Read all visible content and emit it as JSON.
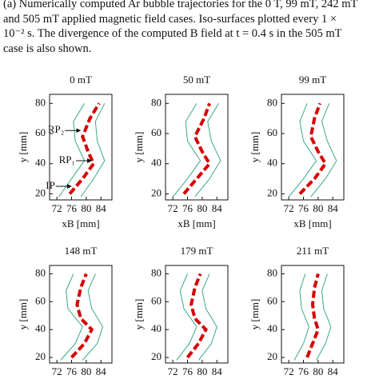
{
  "caption": [
    "(a) Numerically computed Ar bubble trajectories for the 0 T, 99 mT, 242 mT",
    "and 505 mT applied magnetic field cases.  Iso-surfaces plotted every 1 ×",
    "10⁻² s. The divergence of the computed B field at t = 0.4 s in the 505 mT",
    "case is also shown."
  ],
  "chart_data": [
    {
      "type": "line",
      "title": "0 mT",
      "xlabel": "xB [mm]",
      "ylabel": "y [mm]",
      "xlim": [
        70,
        87
      ],
      "ylim": [
        16,
        86
      ],
      "xticks": [
        72,
        76,
        80,
        84
      ],
      "yticks": [
        20,
        40,
        60,
        80
      ],
      "series": [
        {
          "color": "#3aa88a",
          "x": [
            72.5,
            76,
            79.5,
            77,
            76.5,
            79.5
          ],
          "values": [
            18,
            30,
            42,
            55,
            68,
            80
          ]
        },
        {
          "color": "#3aa88a",
          "x": [
            78.5,
            82,
            85,
            83,
            82.5,
            85
          ],
          "values": [
            18,
            30,
            42,
            55,
            68,
            80
          ]
        },
        {
          "color": "#d40000",
          "x": [
            75.5,
            79,
            82,
            80.5,
            79,
            81,
            83.5
          ],
          "values": [
            20,
            30,
            40,
            48,
            58,
            70,
            80
          ]
        }
      ],
      "annotations": [
        {
          "text": "RP₂",
          "x": 79,
          "y": 62
        },
        {
          "text": "RP₁",
          "x": 82,
          "y": 42
        },
        {
          "text": "IP",
          "x": 76.5,
          "y": 25
        }
      ]
    },
    {
      "type": "line",
      "title": "50 mT",
      "xlabel": "xB [mm]",
      "ylabel": "y [mm]",
      "xlim": [
        70,
        87
      ],
      "ylim": [
        16,
        86
      ],
      "xticks": [
        72,
        76,
        80,
        84
      ],
      "yticks": [
        20,
        40,
        60,
        80
      ],
      "series": [
        {
          "color": "#3aa88a",
          "x": [
            72,
            76,
            79.5,
            76,
            75.5,
            78.5
          ],
          "values": [
            18,
            30,
            42,
            55,
            68,
            80
          ]
        },
        {
          "color": "#3aa88a",
          "x": [
            78,
            82,
            85,
            82.5,
            81.5,
            84.5
          ],
          "values": [
            18,
            30,
            42,
            55,
            68,
            80
          ]
        },
        {
          "color": "#d40000",
          "x": [
            75,
            78.5,
            82,
            80,
            78,
            80.5,
            82
          ],
          "values": [
            20,
            30,
            40,
            48,
            58,
            70,
            80
          ]
        }
      ]
    },
    {
      "type": "line",
      "title": "99 mT",
      "xlabel": "xB [mm]",
      "ylabel": "y [mm]",
      "xlim": [
        70,
        87
      ],
      "ylim": [
        16,
        86
      ],
      "xticks": [
        72,
        76,
        80,
        84
      ],
      "yticks": [
        20,
        40,
        60,
        80
      ],
      "series": [
        {
          "color": "#3aa88a",
          "x": [
            72,
            76,
            79.5,
            76,
            75,
            77
          ],
          "values": [
            18,
            30,
            42,
            55,
            68,
            80
          ]
        },
        {
          "color": "#3aa88a",
          "x": [
            78,
            82,
            85,
            82.5,
            81,
            83
          ],
          "values": [
            18,
            30,
            42,
            55,
            68,
            80
          ]
        },
        {
          "color": "#d40000",
          "x": [
            75,
            79,
            82,
            80,
            78,
            79,
            80.5
          ],
          "values": [
            20,
            30,
            40,
            48,
            58,
            70,
            80
          ]
        }
      ]
    },
    {
      "type": "line",
      "title": "148 mT",
      "ylabel": "y [mm]",
      "xlim": [
        70,
        87
      ],
      "ylim": [
        16,
        86
      ],
      "xticks": [
        72,
        76,
        80,
        84
      ],
      "yticks": [
        20,
        40,
        60,
        80
      ],
      "series": [
        {
          "color": "#3aa88a",
          "x": [
            73,
            77,
            79,
            75,
            74.5,
            76.5
          ],
          "values": [
            18,
            30,
            42,
            55,
            68,
            80
          ]
        },
        {
          "color": "#3aa88a",
          "x": [
            79,
            83,
            84.5,
            81.5,
            80.5,
            82.5
          ],
          "values": [
            18,
            30,
            42,
            55,
            68,
            80
          ]
        },
        {
          "color": "#d40000",
          "x": [
            76,
            79.5,
            81.5,
            78.5,
            77.5,
            78.5,
            80
          ],
          "values": [
            20,
            30,
            40,
            48,
            58,
            70,
            80
          ]
        }
      ]
    },
    {
      "type": "line",
      "title": "179 mT",
      "ylabel": "y [mm]",
      "xlim": [
        70,
        87
      ],
      "ylim": [
        16,
        86
      ],
      "xticks": [
        72,
        76,
        80,
        84
      ],
      "yticks": [
        20,
        40,
        60,
        80
      ],
      "series": [
        {
          "color": "#3aa88a",
          "x": [
            73,
            76.5,
            78.5,
            75,
            74,
            76
          ],
          "values": [
            18,
            30,
            42,
            55,
            68,
            80
          ]
        },
        {
          "color": "#3aa88a",
          "x": [
            79,
            82.5,
            84,
            81,
            80,
            82
          ],
          "values": [
            18,
            30,
            42,
            55,
            68,
            80
          ]
        },
        {
          "color": "#d40000",
          "x": [
            76,
            79,
            81,
            78,
            77,
            78,
            79.5
          ],
          "values": [
            20,
            30,
            40,
            48,
            58,
            70,
            80
          ]
        }
      ]
    },
    {
      "type": "line",
      "title": "211 mT",
      "ylabel": "y [mm]",
      "xlim": [
        70,
        87
      ],
      "ylim": [
        16,
        86
      ],
      "xticks": [
        72,
        76,
        80,
        84
      ],
      "yticks": [
        20,
        40,
        60,
        80
      ],
      "series": [
        {
          "color": "#3aa88a",
          "x": [
            73.5,
            76,
            77.5,
            75.5,
            75,
            76.5
          ],
          "values": [
            18,
            30,
            42,
            55,
            68,
            80
          ]
        },
        {
          "color": "#3aa88a",
          "x": [
            79.5,
            82,
            83.5,
            81.5,
            81,
            82.5
          ],
          "values": [
            18,
            30,
            42,
            55,
            68,
            80
          ]
        },
        {
          "color": "#d40000",
          "x": [
            77,
            78.5,
            80,
            79,
            78.5,
            79,
            80
          ],
          "values": [
            20,
            30,
            40,
            48,
            58,
            70,
            80
          ]
        }
      ]
    }
  ]
}
